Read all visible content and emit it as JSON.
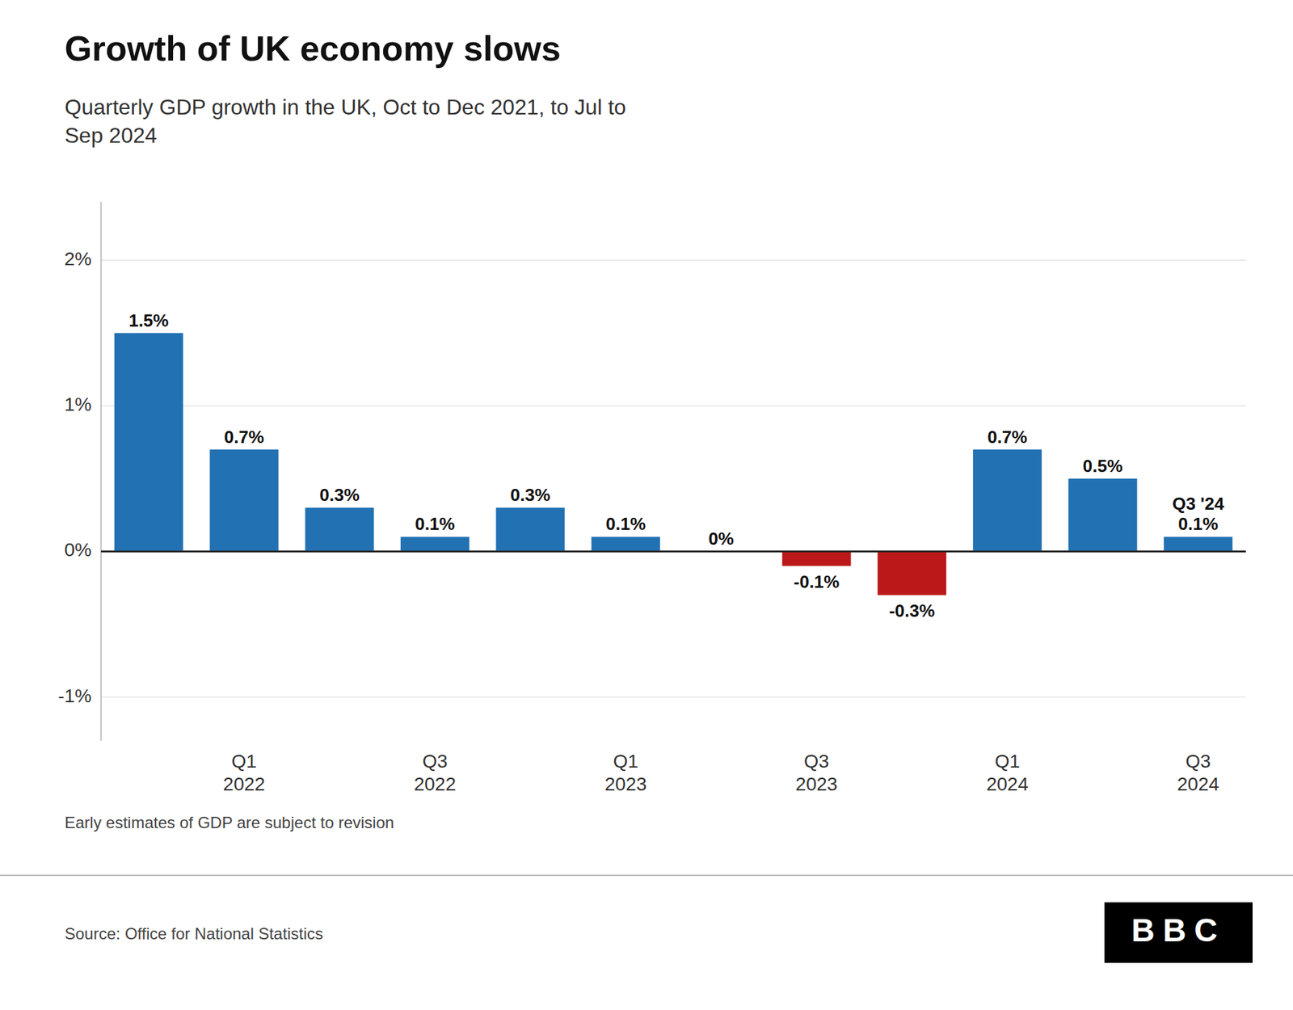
{
  "chart_data": {
    "type": "bar",
    "title": "Growth of UK economy slows",
    "subtitle": "Quarterly GDP growth in the UK, Oct to Dec 2021, to Jul to\nSep 2024",
    "annotations": [
      "Early estimates of GDP are subject to revision",
      "Source: Office for National Statistics",
      "BBC"
    ],
    "categories": [
      null,
      "Q1\n2022",
      null,
      "Q3\n2022",
      null,
      "Q1\n2023",
      null,
      "Q3\n2023",
      null,
      "Q1\n2024",
      null,
      "Q3\n2024"
    ],
    "values": [
      1.5,
      0.7,
      0.3,
      0.1,
      0.3,
      0.1,
      0.0,
      -0.1,
      -0.3,
      0.7,
      0.5,
      0.1
    ],
    "value_labels": [
      "1.5%",
      "0.7%",
      "0.3%",
      "0.1%",
      "0.3%",
      "0.1%",
      "0%",
      "-0.1%",
      "-0.3%",
      "0.7%",
      "0.5%",
      "Q3 '24\n0.1%"
    ],
    "colors": [
      "#2271b3",
      "#2271b3",
      "#2271b3",
      "#2271b3",
      "#2271b3",
      "#2271b3",
      "#2271b3",
      "#bb1919",
      "#bb1919",
      "#2271b3",
      "#2271b3",
      "#2271b3"
    ],
    "ylim": [
      -1.3,
      2.4
    ],
    "yticks": [
      {
        "value": -1.0,
        "label": "-1%"
      },
      {
        "value": 0.0,
        "label": "0%"
      },
      {
        "value": 1.0,
        "label": "1%"
      },
      {
        "value": 2.0,
        "label": "2%"
      }
    ],
    "grid": true,
    "data_labels": true
  }
}
